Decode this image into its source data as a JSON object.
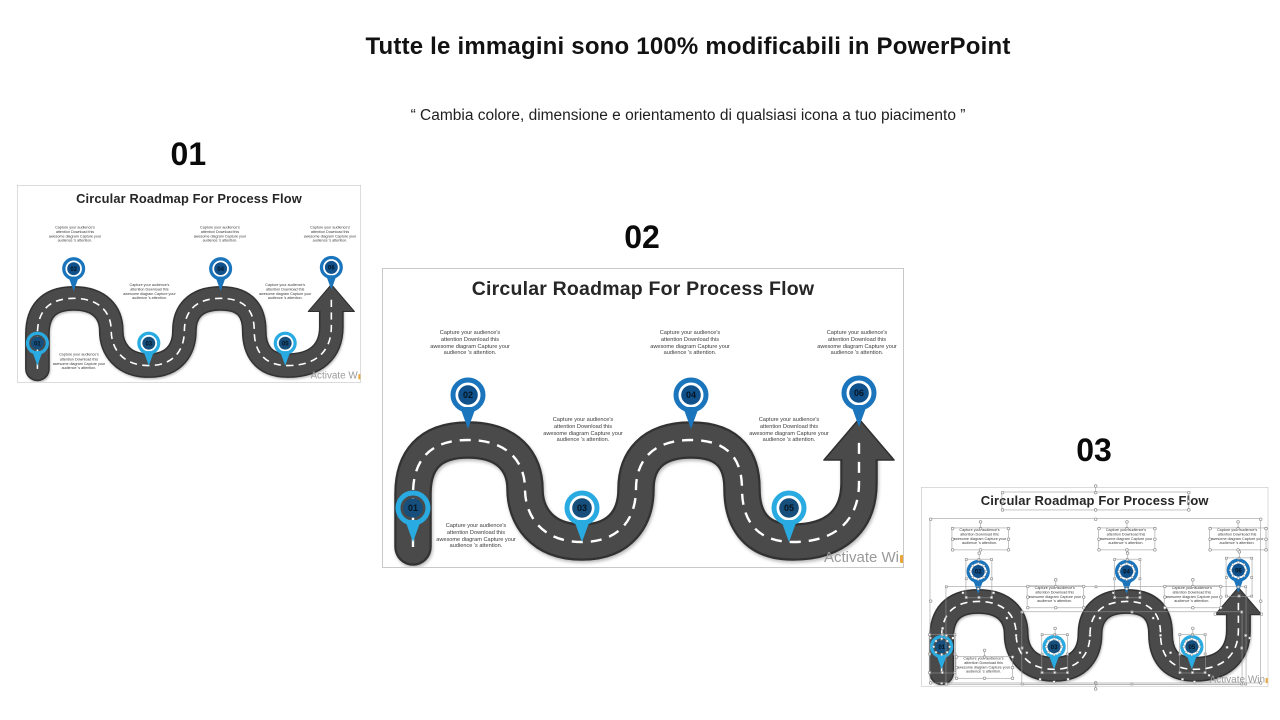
{
  "header": {
    "title": "Tutte le immagini sono 100% modificabili in PowerPoint",
    "subtitle": "“ Cambia colore, dimensione e orientamento di qualsiasi icona a tuo piacimento ”"
  },
  "roadmap": {
    "slide_title": "Circular Roadmap For Process Flow",
    "caption": "Capture your audience's attention Download this awesome diagram Capture your audience 's attention.",
    "pins": [
      {
        "number": "01"
      },
      {
        "number": "02"
      },
      {
        "number": "03"
      },
      {
        "number": "04"
      },
      {
        "number": "05"
      },
      {
        "number": "06"
      }
    ],
    "colors": {
      "road": "#4A4A4A",
      "road_edge": "#303030",
      "dash": "#FFFFFF",
      "pin_blue": "#1B75BC",
      "pin_cyan": "#29ABE2",
      "pin_disc_even": "#10518C",
      "pin_disc_odd": "#174F7C",
      "pin_number": "#06141F"
    }
  },
  "slides": [
    {
      "label": "01",
      "watermark": "Activate W",
      "selected": false
    },
    {
      "label": "02",
      "watermark": "Activate Wi",
      "selected": false
    },
    {
      "label": "03",
      "watermark": "Activate Win",
      "selected": true
    }
  ]
}
